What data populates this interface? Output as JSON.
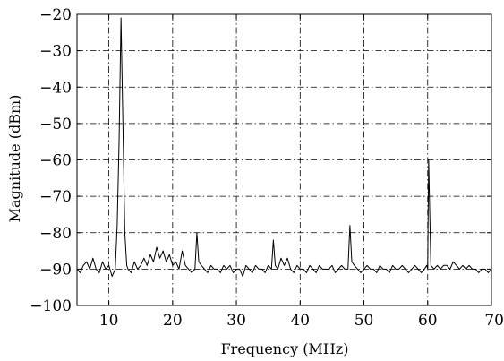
{
  "chart_data": {
    "type": "line",
    "title": "",
    "xlabel": "Frequency (MHz)",
    "ylabel": "Magnitude (dBm)",
    "xlim": [
      5,
      70
    ],
    "ylim": [
      -100,
      -20
    ],
    "xticks": [
      10,
      20,
      30,
      40,
      50,
      60,
      70
    ],
    "xtick_labels": [
      "10",
      "20",
      "30",
      "40",
      "50",
      "60",
      "70"
    ],
    "yticks": [
      -100,
      -90,
      -80,
      -70,
      -60,
      -50,
      -40,
      -30,
      -20
    ],
    "ytick_labels": [
      "−100",
      "−90",
      "−80",
      "−70",
      "−60",
      "−50",
      "−40",
      "−30",
      "−20"
    ],
    "grid": true,
    "legend": "none",
    "series": [
      {
        "x": [
          5.0,
          5.5,
          6.0,
          6.5,
          7.0,
          7.5,
          8.0,
          8.5,
          9.0,
          9.5,
          10.0,
          10.5,
          11.0,
          11.3,
          11.6,
          11.9,
          12.2,
          12.5,
          12.8,
          13.0,
          13.5,
          14.0,
          14.5,
          15.0,
          15.5,
          16.0,
          16.5,
          17.0,
          17.5,
          18.0,
          18.5,
          19.0,
          19.5,
          20.0,
          20.5,
          21.0,
          21.5,
          22.0,
          22.5,
          23.0,
          23.5,
          23.8,
          24.1,
          24.5,
          25.0,
          25.5,
          26.0,
          26.5,
          27.0,
          27.5,
          28.0,
          28.5,
          29.0,
          29.5,
          30.0,
          30.5,
          31.0,
          31.5,
          32.0,
          32.5,
          33.0,
          33.5,
          34.0,
          34.5,
          35.0,
          35.5,
          35.8,
          36.1,
          36.5,
          37.0,
          37.5,
          38.0,
          38.5,
          39.0,
          39.5,
          40.0,
          40.5,
          41.0,
          41.5,
          42.0,
          42.5,
          43.0,
          43.5,
          44.0,
          44.5,
          45.0,
          45.5,
          46.0,
          46.5,
          47.0,
          47.5,
          47.8,
          48.1,
          48.5,
          49.0,
          49.5,
          50.0,
          50.5,
          51.0,
          51.5,
          52.0,
          52.5,
          53.0,
          53.5,
          54.0,
          54.5,
          55.0,
          55.5,
          56.0,
          56.5,
          57.0,
          57.5,
          58.0,
          58.5,
          59.0,
          59.5,
          59.85,
          60.0,
          60.15,
          60.5,
          61.0,
          61.5,
          62.0,
          62.5,
          63.0,
          63.5,
          64.0,
          64.5,
          65.0,
          65.5,
          66.0,
          66.5,
          67.0,
          67.5,
          68.0,
          68.5,
          69.0,
          69.5,
          70.0
        ],
        "y": [
          -90,
          -91,
          -89,
          -88,
          -90,
          -87,
          -90,
          -91,
          -88,
          -90,
          -89,
          -92,
          -90,
          -78,
          -55,
          -21,
          -50,
          -80,
          -89,
          -90,
          -91,
          -88,
          -90,
          -89,
          -87,
          -89,
          -86,
          -88,
          -84,
          -87,
          -85,
          -88,
          -86,
          -89,
          -88,
          -90,
          -85,
          -89,
          -90,
          -91,
          -90,
          -80,
          -88,
          -89,
          -90,
          -91,
          -89,
          -90,
          -90,
          -91,
          -89,
          -90,
          -89,
          -91,
          -90,
          -90,
          -92,
          -89,
          -90,
          -91,
          -89,
          -90,
          -90,
          -91,
          -89,
          -90,
          -82,
          -89,
          -90,
          -87,
          -89,
          -87,
          -90,
          -91,
          -89,
          -90,
          -90,
          -91,
          -89,
          -90,
          -91,
          -89,
          -90,
          -90,
          -90,
          -89,
          -91,
          -90,
          -89,
          -90,
          -90,
          -78,
          -88,
          -89,
          -90,
          -91,
          -90,
          -89,
          -90,
          -90,
          -91,
          -89,
          -90,
          -90,
          -91,
          -89,
          -90,
          -90,
          -89,
          -90,
          -91,
          -90,
          -89,
          -90,
          -91,
          -90,
          -89,
          -90,
          -60,
          -89,
          -90,
          -89,
          -90,
          -89,
          -89,
          -90,
          -88,
          -89,
          -90,
          -89,
          -90,
          -89,
          -90,
          -90,
          -91,
          -90,
          -90,
          -91,
          -90
        ]
      }
    ]
  }
}
